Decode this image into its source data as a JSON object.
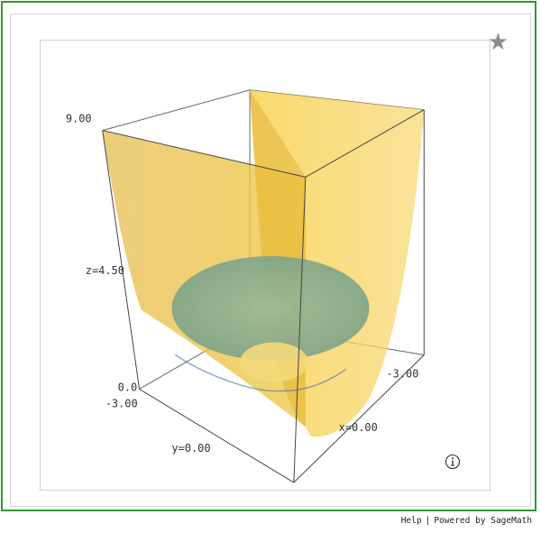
{
  "favorite_icon": "star-icon",
  "info_icon": "info-circle-icon",
  "axes": {
    "z_max": "9.00",
    "z_mid": "z=4.50",
    "z_min": "0.0",
    "y_min": "-3.00",
    "y_mid": "y=0.00",
    "x_min": "-3.00",
    "x_mid": "x=0.00"
  },
  "colors": {
    "surface": "#f2c532",
    "disk": "#7fa98a",
    "frame": "#2e9a2e"
  },
  "footer": {
    "help": "Help",
    "separator": "|",
    "powered": "Powered by SageMath"
  }
}
